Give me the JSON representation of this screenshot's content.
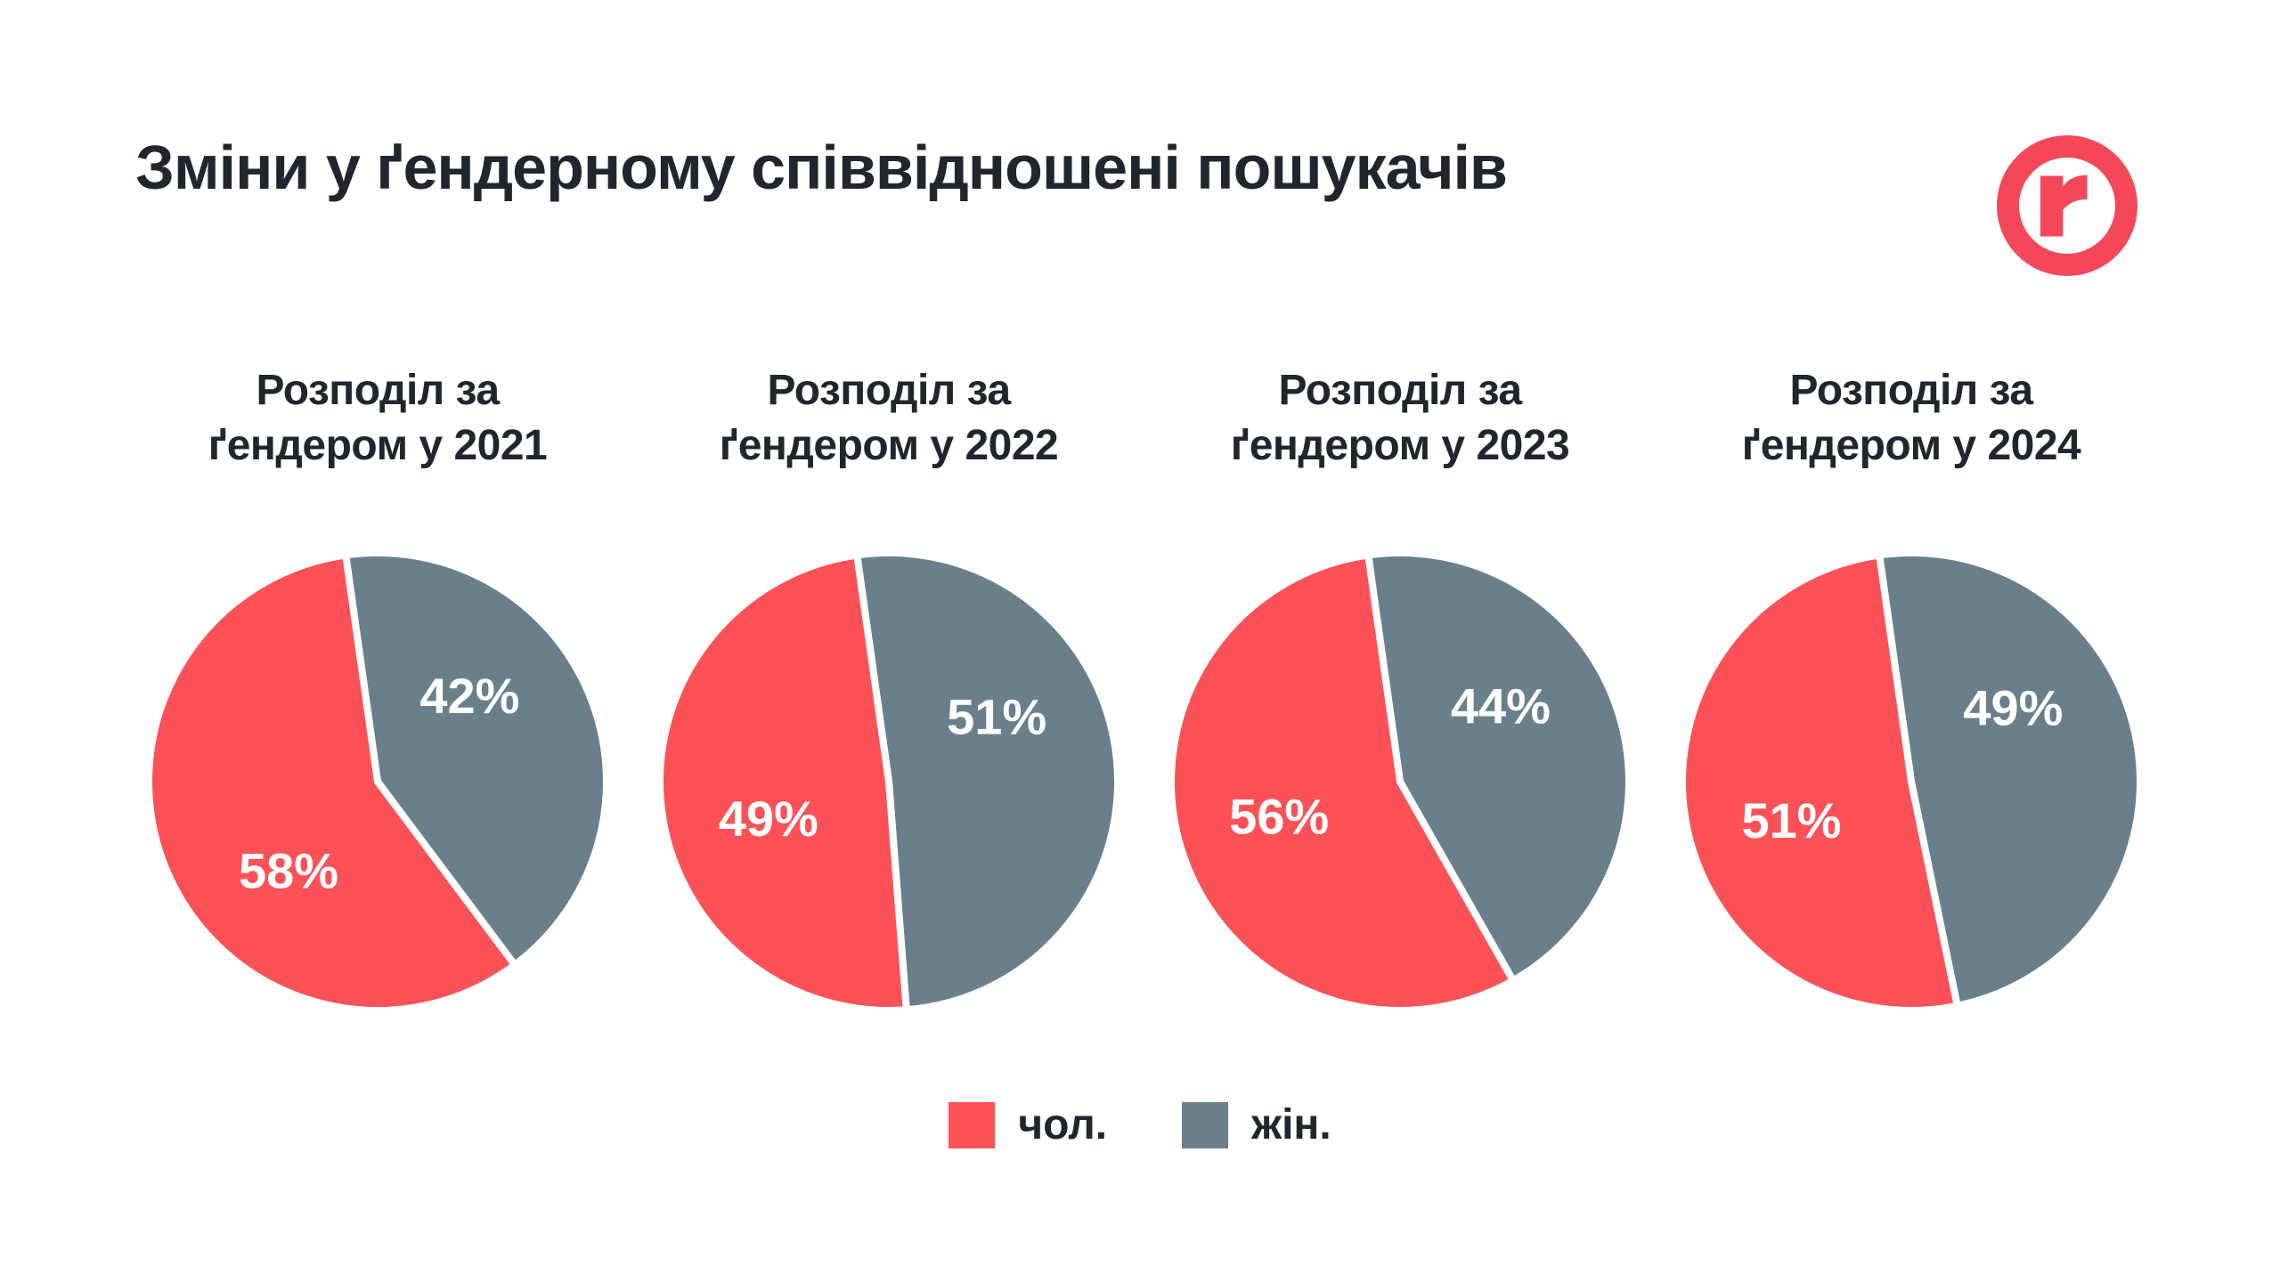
{
  "page": {
    "title": "Зміни у ґендерному співвідношені пошукачів",
    "background": "#ffffff"
  },
  "logo": {
    "letter": "r",
    "color": "#f4475a"
  },
  "colors": {
    "male": "#fc5257",
    "female": "#697f8c",
    "heading_text": "#21262e",
    "slice_label_text": "#ffffff"
  },
  "legend": {
    "position": "bottom-center",
    "items": [
      {
        "key": "male",
        "label": "чол.",
        "color": "#fc5257"
      },
      {
        "key": "female",
        "label": "жін.",
        "color": "#697f8c"
      }
    ]
  },
  "chart_data": [
    {
      "type": "pie",
      "title": "Розподіл за ґендером у 2021",
      "title_lines": [
        "Розподіл за",
        "ґендером у 2021"
      ],
      "labels": [
        "чол.",
        "жін."
      ],
      "values": [
        58,
        42
      ],
      "value_labels": [
        "58%",
        "42%"
      ],
      "colors": [
        "#fc5257",
        "#697f8c"
      ],
      "start_angle_deg": -8,
      "label_angles_deg": [
        225,
        47
      ],
      "label_radius_frac": 0.55,
      "legend": "shared-bottom"
    },
    {
      "type": "pie",
      "title": "Розподіл за ґендером у 2022",
      "title_lines": [
        "Розподіл за",
        "ґендером у 2022"
      ],
      "labels": [
        "чол.",
        "жін."
      ],
      "values": [
        49,
        51
      ],
      "value_labels": [
        "49%",
        "51%"
      ],
      "colors": [
        "#fc5257",
        "#697f8c"
      ],
      "start_angle_deg": -8,
      "label_angles_deg": [
        253,
        59
      ],
      "label_radius_frac": 0.55,
      "legend": "shared-bottom"
    },
    {
      "type": "pie",
      "title": "Розподіл за ґендером у 2023",
      "title_lines": [
        "Розподіл за",
        "ґендером у 2023"
      ],
      "labels": [
        "чол.",
        "жін."
      ],
      "values": [
        56,
        44
      ],
      "value_labels": [
        "56%",
        "44%"
      ],
      "colors": [
        "#fc5257",
        "#697f8c"
      ],
      "start_angle_deg": -8,
      "label_angles_deg": [
        254,
        53
      ],
      "label_radius_frac": 0.55,
      "legend": "shared-bottom"
    },
    {
      "type": "pie",
      "title": "Розподіл за ґендером у 2024",
      "title_lines": [
        "Розподіл за",
        "ґендером у 2024"
      ],
      "labels": [
        "чол.",
        "жін."
      ],
      "values": [
        51,
        49
      ],
      "value_labels": [
        "51%",
        "49%"
      ],
      "colors": [
        "#fc5257",
        "#697f8c"
      ],
      "start_angle_deg": -8,
      "label_angles_deg": [
        252,
        54
      ],
      "label_radius_frac": 0.55,
      "legend": "shared-bottom"
    }
  ]
}
